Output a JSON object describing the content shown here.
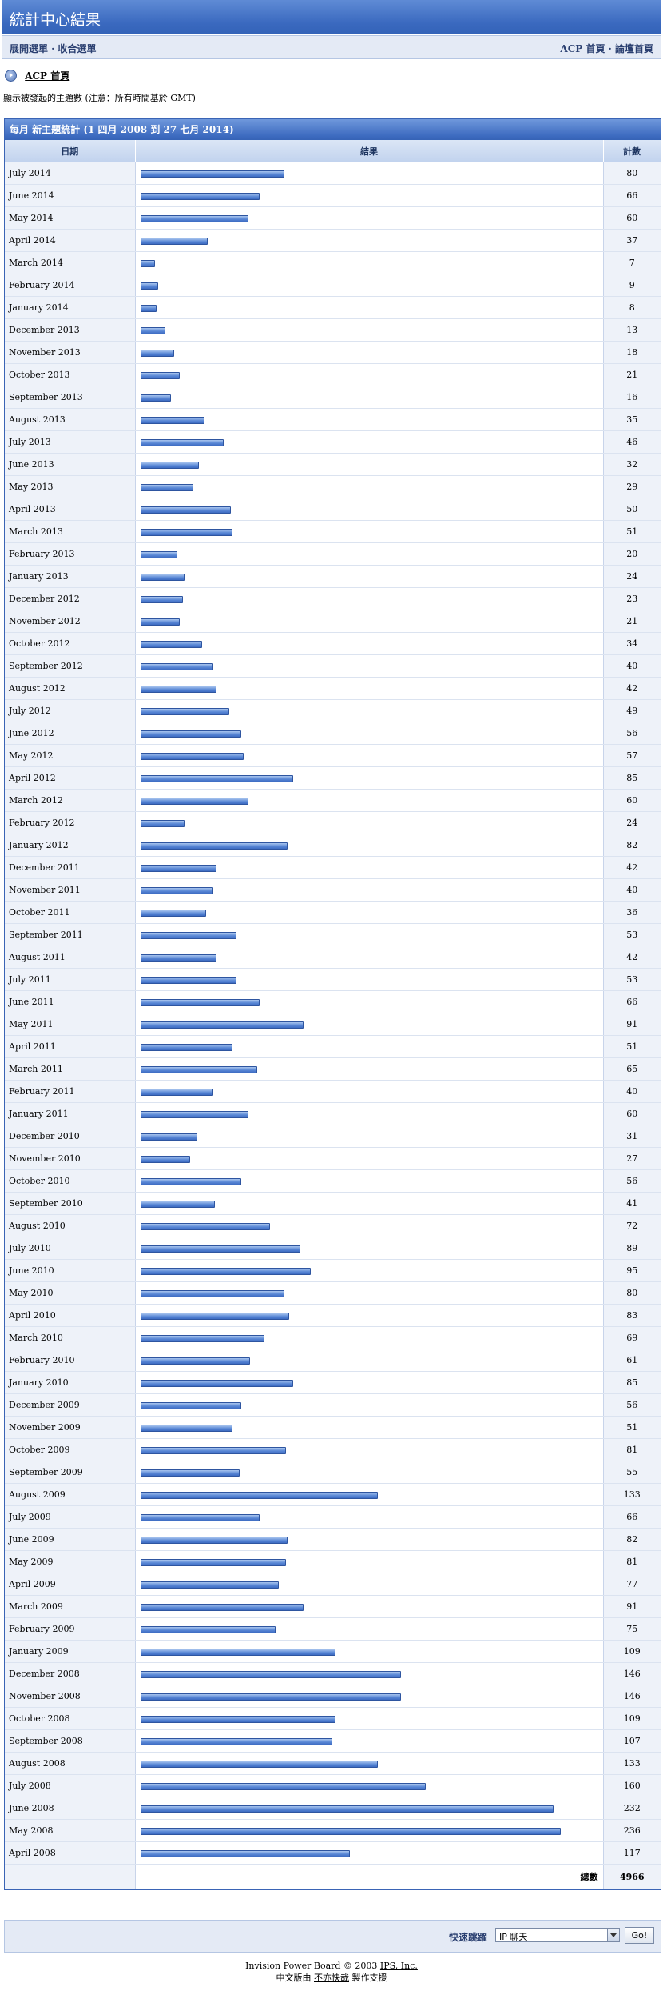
{
  "title": "統計中心結果",
  "menu": {
    "left": "展開選單 · 收合選單",
    "right": "ACP 首頁 · 論壇首頁"
  },
  "breadcrumb": "ACP 首頁",
  "note": "顯示被發起的主題數 (注意：所有時間基於 GMT)",
  "table": {
    "heading": "每月 新主題統計 (1 四月 2008 到 27 七月 2014)",
    "col_date": "日期",
    "col_result": "結果",
    "col_count": "計數",
    "total_label": "總數",
    "total_value": "4966"
  },
  "jump": {
    "label": "快速跳躍",
    "selected": "IP 聊天",
    "go": "Go!"
  },
  "footer": {
    "line1": "Invision Power Board © 2003 ",
    "ips_link": "IPS, Inc.",
    "line2_pre": "中文版由 ",
    "cn_link": "不亦快哉",
    "line2_post": " 製作支援"
  },
  "chart_data": {
    "type": "bar",
    "orientation": "horizontal",
    "title": "每月 新主題統計 (1 四月 2008 到 27 七月 2014)",
    "categories": [
      "July 2014",
      "June 2014",
      "May 2014",
      "April 2014",
      "March 2014",
      "February 2014",
      "January 2014",
      "December 2013",
      "November 2013",
      "October 2013",
      "September 2013",
      "August 2013",
      "July 2013",
      "June 2013",
      "May 2013",
      "April 2013",
      "March 2013",
      "February 2013",
      "January 2013",
      "December 2012",
      "November 2012",
      "October 2012",
      "September 2012",
      "August 2012",
      "July 2012",
      "June 2012",
      "May 2012",
      "April 2012",
      "March 2012",
      "February 2012",
      "January 2012",
      "December 2011",
      "November 2011",
      "October 2011",
      "September 2011",
      "August 2011",
      "July 2011",
      "June 2011",
      "May 2011",
      "April 2011",
      "March 2011",
      "February 2011",
      "January 2011",
      "December 2010",
      "November 2010",
      "October 2010",
      "September 2010",
      "August 2010",
      "July 2010",
      "June 2010",
      "May 2010",
      "April 2010",
      "March 2010",
      "February 2010",
      "January 2010",
      "December 2009",
      "November 2009",
      "October 2009",
      "September 2009",
      "August 2009",
      "July 2009",
      "June 2009",
      "May 2009",
      "April 2009",
      "March 2009",
      "February 2009",
      "January 2009",
      "December 2008",
      "November 2008",
      "October 2008",
      "September 2008",
      "August 2008",
      "July 2008",
      "June 2008",
      "May 2008",
      "April 2008"
    ],
    "values": [
      80,
      66,
      60,
      37,
      7,
      9,
      8,
      13,
      18,
      21,
      16,
      35,
      46,
      32,
      29,
      50,
      51,
      20,
      24,
      23,
      21,
      34,
      40,
      42,
      49,
      56,
      57,
      85,
      60,
      24,
      82,
      42,
      40,
      36,
      53,
      42,
      53,
      66,
      91,
      51,
      65,
      40,
      60,
      31,
      27,
      56,
      41,
      72,
      89,
      95,
      80,
      83,
      69,
      61,
      85,
      56,
      51,
      81,
      55,
      133,
      66,
      82,
      81,
      77,
      91,
      75,
      109,
      146,
      146,
      109,
      107,
      133,
      160,
      232,
      236,
      117
    ],
    "total": 4966
  }
}
